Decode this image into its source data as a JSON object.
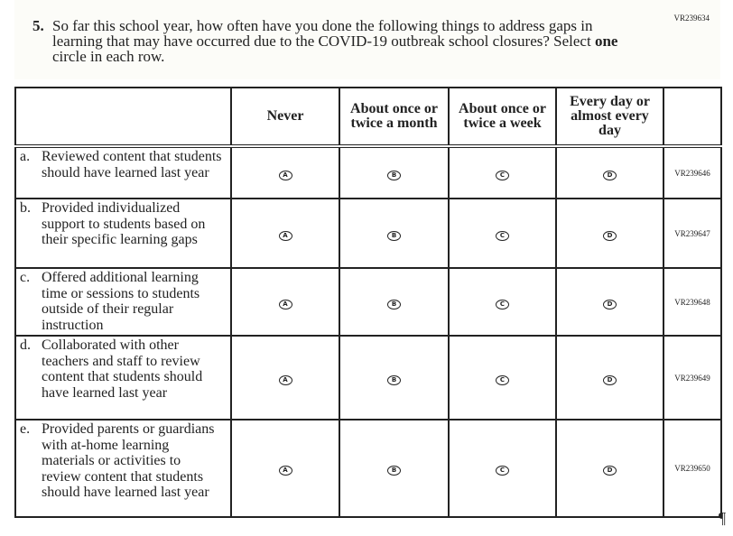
{
  "question": {
    "id": "VR239634",
    "number": "5.",
    "text_before": "So far this school year, how often have you done the following things to address gaps in learning that may have occurred due to the COVID-19 outbreak school closures? Select ",
    "text_bold": "one",
    "text_after": " circle in each row."
  },
  "columns": [
    "Never",
    "About once or twice a month",
    "About once or twice a week",
    "Every day or almost every day"
  ],
  "rows": [
    {
      "letter": "a.",
      "text": "Reviewed content that students should have learned last year",
      "vr": "VR239646",
      "options": [
        "A",
        "B",
        "C",
        "D"
      ]
    },
    {
      "letter": "b.",
      "text": "Provided individualized support to students based on their specific learning gaps",
      "vr": "VR239647",
      "options": [
        "A",
        "B",
        "C",
        "D"
      ]
    },
    {
      "letter": "c.",
      "text": "Offered additional learning time or sessions to students outside of their regular instruction",
      "vr": "VR239648",
      "options": [
        "A",
        "B",
        "C",
        "D"
      ]
    },
    {
      "letter": "d.",
      "text": "Collaborated with other teachers and staff to review content that students should have learned last year",
      "vr": "VR239649",
      "options": [
        "A",
        "B",
        "C",
        "D"
      ]
    },
    {
      "letter": "e.",
      "text": "Provided parents or guardians with at-home learning materials or activities to review content that students should have learned last year",
      "vr": "VR239650",
      "options": [
        "A",
        "B",
        "C",
        "D"
      ]
    }
  ],
  "pilcrow": "¶"
}
